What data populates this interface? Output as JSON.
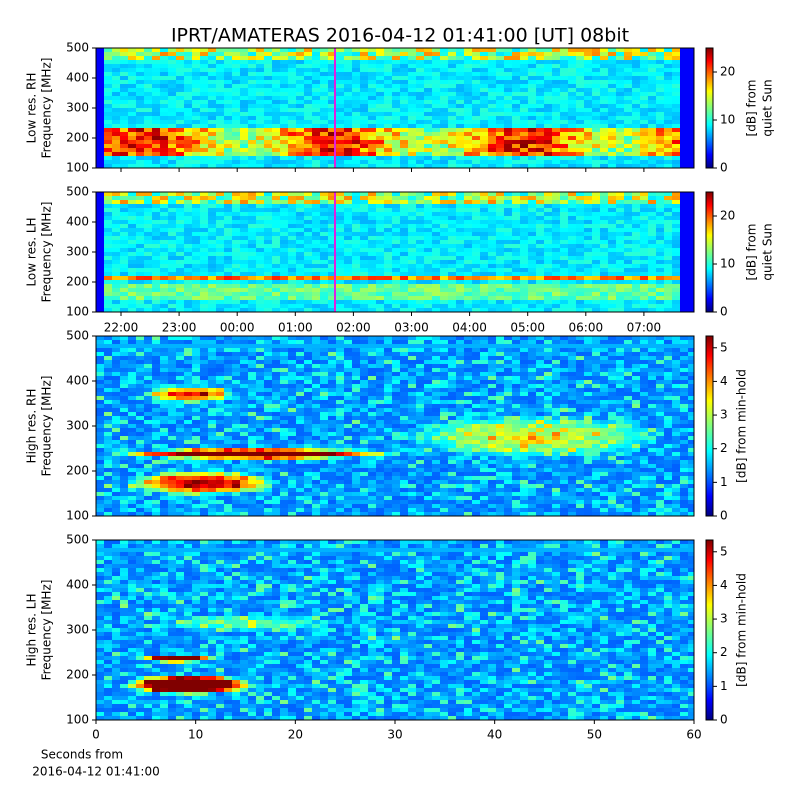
{
  "title": "IPRT/AMATERAS 2016-04-12 01:41:00 [UT]   08bit",
  "chart_data": [
    {
      "type": "heatmap",
      "ylabel": [
        "Low res. RH",
        "Frequency [MHz]"
      ],
      "ylim": [
        100,
        500
      ],
      "yticks": [
        100,
        200,
        300,
        400,
        500
      ],
      "colorbar": {
        "lim": [
          0,
          25
        ],
        "ticks": [
          0,
          10,
          20
        ],
        "label": [
          "[dB] from",
          "quiet Sun"
        ]
      }
    },
    {
      "type": "heatmap",
      "ylabel": [
        "Low res. LH",
        "Frequency [MHz]"
      ],
      "ylim": [
        100,
        500
      ],
      "yticks": [
        100,
        200,
        300,
        400,
        500
      ],
      "colorbar": {
        "lim": [
          0,
          25
        ],
        "ticks": [
          0,
          10,
          20
        ],
        "label": [
          "[dB] from",
          "quiet Sun"
        ]
      },
      "time_ticks": [
        "22:00",
        "23:00",
        "00:00",
        "01:00",
        "02:00",
        "03:00",
        "04:00",
        "05:00",
        "06:00",
        "07:00"
      ]
    },
    {
      "type": "heatmap",
      "ylabel": [
        "High res. RH",
        "Frequency [MHz]"
      ],
      "ylim": [
        100,
        500
      ],
      "yticks": [
        100,
        200,
        300,
        400,
        500
      ],
      "colorbar": {
        "lim": [
          0,
          5.35
        ],
        "ticks": [
          0,
          1,
          2,
          3,
          4,
          5
        ],
        "label": [
          "[dB] from min-hold"
        ]
      }
    },
    {
      "type": "heatmap",
      "ylabel": [
        "High res. LH",
        "Frequency [MHz]"
      ],
      "ylim": [
        100,
        500
      ],
      "yticks": [
        100,
        200,
        300,
        400,
        500
      ],
      "colorbar": {
        "lim": [
          0,
          5.35
        ],
        "ticks": [
          0,
          1,
          2,
          3,
          4,
          5
        ],
        "label": [
          "[dB] from min-hold"
        ]
      },
      "xlim": [
        0,
        60
      ],
      "xticks": [
        0,
        10,
        20,
        30,
        40,
        50,
        60
      ],
      "xlabel": [
        "Seconds from",
        "2016-04-12 01:41:00"
      ]
    }
  ]
}
